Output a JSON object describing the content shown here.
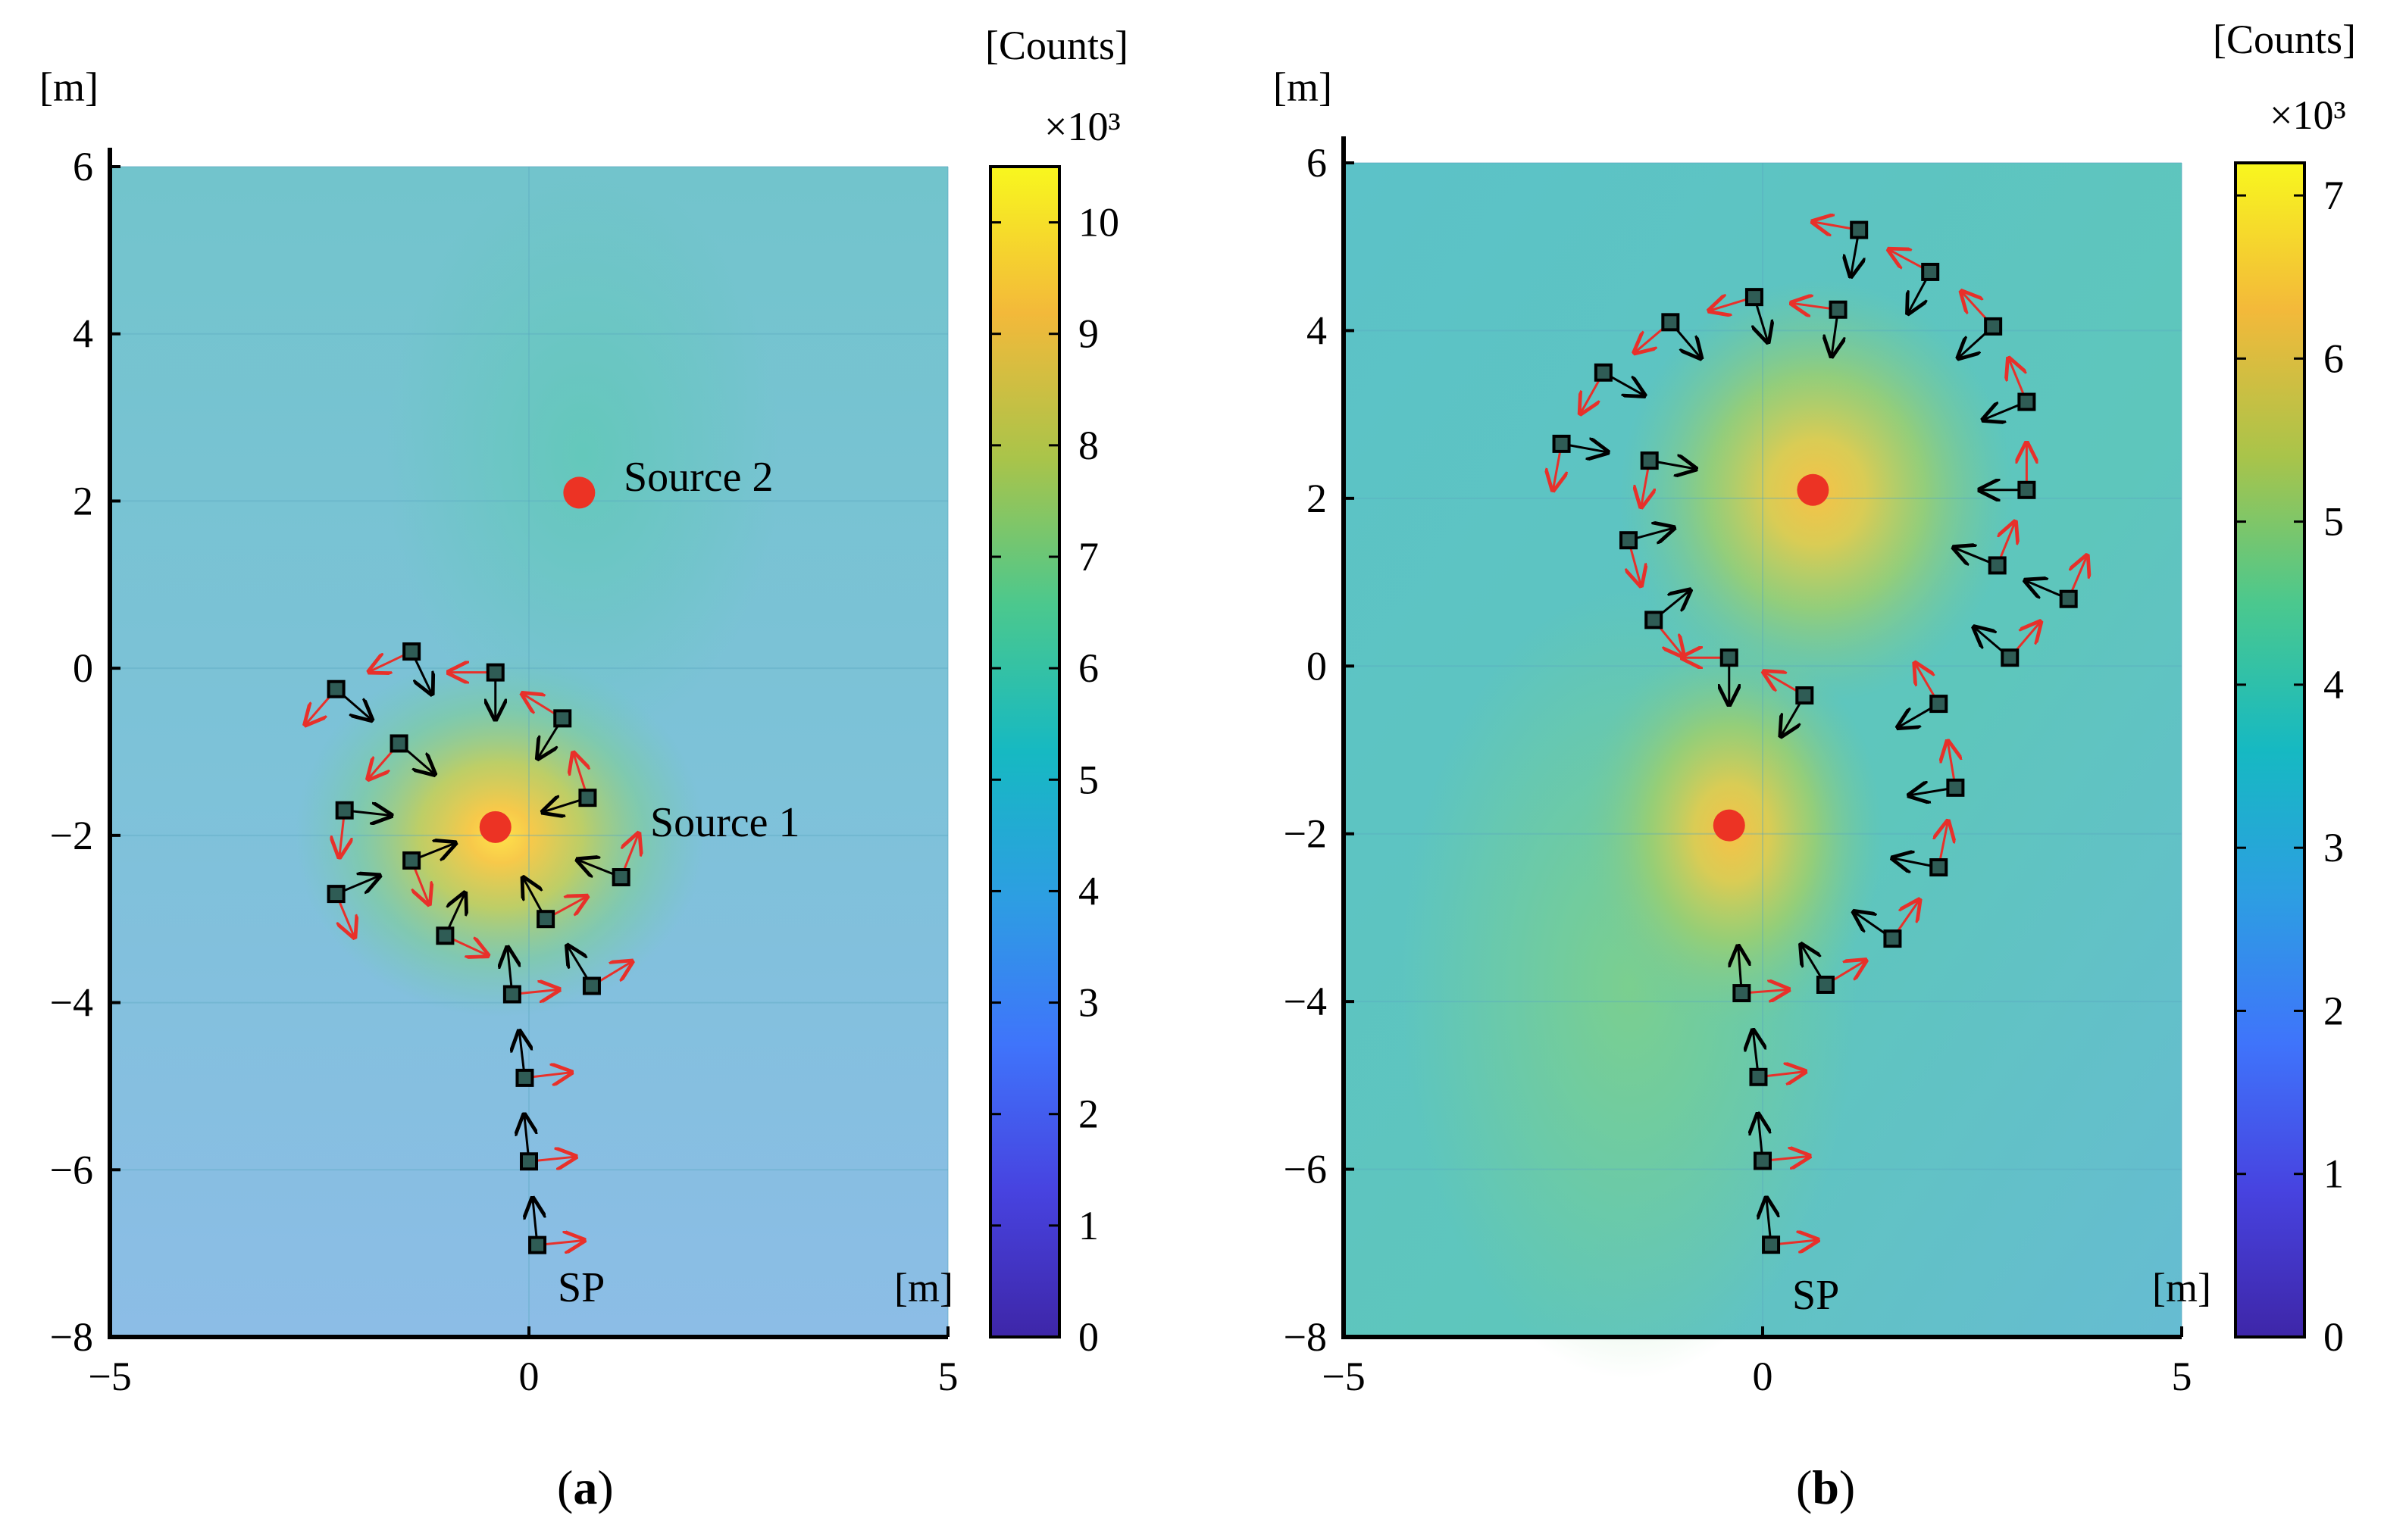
{
  "chart_data": [
    {
      "type": "heatmap",
      "panel_label": "a",
      "xunit": "[m]",
      "yunit": "[m]",
      "xlim": [
        -5,
        5
      ],
      "ylim": [
        -8,
        6
      ],
      "xticks": [
        -5,
        0,
        5
      ],
      "yticks": [
        -8,
        -6,
        -4,
        -2,
        0,
        2,
        4,
        6
      ],
      "xtick_labels": [
        "−5",
        "0",
        "5"
      ],
      "ytick_labels": [
        "−8",
        "−6",
        "−4",
        "−2",
        "0",
        "2",
        "4",
        "6"
      ],
      "grid": true,
      "colorbar": {
        "title": "[Counts]",
        "multiplier": "×10³",
        "range": [
          0,
          10.5
        ],
        "ticks": [
          0,
          1,
          2,
          3,
          4,
          5,
          6,
          7,
          8,
          9,
          10
        ],
        "tick_labels": [
          "0",
          "1",
          "2",
          "3",
          "4",
          "5",
          "6",
          "7",
          "8",
          "9",
          "10"
        ]
      },
      "sources": [
        {
          "name": "Source 1",
          "x": -0.4,
          "y": -1.9
        },
        {
          "name": "Source 2",
          "x": 0.6,
          "y": 2.1
        }
      ],
      "start_point": {
        "label": "SP",
        "x": 0.1,
        "y": -6.9
      },
      "measurement_points": [
        [
          0.1,
          -6.9
        ],
        [
          0.0,
          -5.9
        ],
        [
          -0.05,
          -4.9
        ],
        [
          -0.2,
          -3.9
        ],
        [
          0.75,
          -3.8
        ],
        [
          -1.0,
          -3.2
        ],
        [
          0.2,
          -3.0
        ],
        [
          -2.3,
          -2.7
        ],
        [
          1.1,
          -2.5
        ],
        [
          -1.4,
          -2.3
        ],
        [
          -2.2,
          -1.7
        ],
        [
          0.7,
          -1.55
        ],
        [
          -1.55,
          -0.9
        ],
        [
          0.4,
          -0.6
        ],
        [
          -2.3,
          -0.25
        ],
        [
          -0.4,
          -0.05
        ],
        [
          -1.4,
          0.2
        ]
      ]
    },
    {
      "type": "heatmap",
      "panel_label": "b",
      "xunit": "[m]",
      "yunit": "[m]",
      "xlim": [
        -5,
        5
      ],
      "ylim": [
        -8,
        6
      ],
      "xticks": [
        -5,
        0,
        5
      ],
      "yticks": [
        -8,
        -6,
        -4,
        -2,
        0,
        2,
        4,
        6
      ],
      "xtick_labels": [
        "−5",
        "0",
        "5"
      ],
      "ytick_labels": [
        "−8",
        "−6",
        "−4",
        "−2",
        "0",
        "2",
        "4",
        "6"
      ],
      "grid": true,
      "colorbar": {
        "title": "[Counts]",
        "multiplier": "×10³",
        "range": [
          0,
          7.2
        ],
        "ticks": [
          0,
          1,
          2,
          3,
          4,
          5,
          6,
          7
        ],
        "tick_labels": [
          "0",
          "1",
          "2",
          "3",
          "4",
          "5",
          "6",
          "7"
        ]
      },
      "sources": [
        {
          "name": "",
          "x": -0.4,
          "y": -1.9
        },
        {
          "name": "",
          "x": 0.6,
          "y": 2.1
        }
      ],
      "start_point": {
        "label": "SP",
        "x": 0.1,
        "y": -6.9
      },
      "measurement_points": [
        [
          0.1,
          -6.9
        ],
        [
          0.0,
          -5.9
        ],
        [
          -0.05,
          -4.9
        ],
        [
          -0.25,
          -3.9
        ],
        [
          0.75,
          -3.8
        ],
        [
          1.55,
          -3.25
        ],
        [
          2.1,
          -2.4
        ],
        [
          2.3,
          -1.45
        ],
        [
          2.1,
          -0.45
        ],
        [
          0.5,
          -0.35
        ],
        [
          -0.4,
          0.1
        ],
        [
          2.95,
          0.1
        ],
        [
          -1.3,
          0.55
        ],
        [
          3.65,
          0.8
        ],
        [
          2.8,
          1.2
        ],
        [
          -1.6,
          1.5
        ],
        [
          -1.35,
          2.45
        ],
        [
          3.15,
          2.1
        ],
        [
          -2.4,
          2.65
        ],
        [
          3.15,
          3.15
        ],
        [
          -1.9,
          3.5
        ],
        [
          2.75,
          4.05
        ],
        [
          -1.1,
          4.1
        ],
        [
          -0.1,
          4.4
        ],
        [
          0.9,
          4.25
        ],
        [
          2.0,
          4.7
        ],
        [
          1.15,
          5.2
        ]
      ]
    }
  ],
  "captions": {
    "a": {
      "open": "(",
      "letter": "a",
      "close": ")"
    },
    "b": {
      "open": "(",
      "letter": "b",
      "close": ")"
    }
  }
}
